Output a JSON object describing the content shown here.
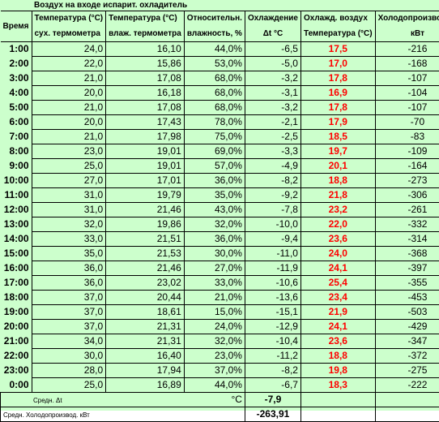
{
  "title": "Воздух на входе испарит. охладитель",
  "headers": {
    "time": "Время",
    "dry_top": "Температура (°C)",
    "dry_bottom": "сух. термометра",
    "wet_top": "Температура (°C)",
    "wet_bottom": "влаж. термометра",
    "rh_top": "Относительн.",
    "rh_bottom": "влажность, %",
    "cool_top": "Охлаждение",
    "cool_bottom": "Δt °C",
    "air_top": "Охлажд. воздух",
    "air_bottom": "Температура (°C)",
    "cap_top": "Холодопроизводит.",
    "cap_bottom": "кВт"
  },
  "rows": [
    {
      "time": "1:00",
      "dry": "24,0",
      "wet": "16,10",
      "rh": "44,0%",
      "dt": "-6,5",
      "air": "17,5",
      "kw": "-216"
    },
    {
      "time": "2:00",
      "dry": "22,0",
      "wet": "15,86",
      "rh": "53,0%",
      "dt": "-5,0",
      "air": "17,0",
      "kw": "-168"
    },
    {
      "time": "3:00",
      "dry": "21,0",
      "wet": "17,08",
      "rh": "68,0%",
      "dt": "-3,2",
      "air": "17,8",
      "kw": "-107"
    },
    {
      "time": "4:00",
      "dry": "20,0",
      "wet": "16,18",
      "rh": "68,0%",
      "dt": "-3,1",
      "air": "16,9",
      "kw": "-104"
    },
    {
      "time": "5:00",
      "dry": "21,0",
      "wet": "17,08",
      "rh": "68,0%",
      "dt": "-3,2",
      "air": "17,8",
      "kw": "-107"
    },
    {
      "time": "6:00",
      "dry": "20,0",
      "wet": "17,43",
      "rh": "78,0%",
      "dt": "-2,1",
      "air": "17,9",
      "kw": "-70"
    },
    {
      "time": "7:00",
      "dry": "21,0",
      "wet": "17,98",
      "rh": "75,0%",
      "dt": "-2,5",
      "air": "18,5",
      "kw": "-83"
    },
    {
      "time": "8:00",
      "dry": "23,0",
      "wet": "19,01",
      "rh": "69,0%",
      "dt": "-3,3",
      "air": "19,7",
      "kw": "-109"
    },
    {
      "time": "9:00",
      "dry": "25,0",
      "wet": "19,01",
      "rh": "57,0%",
      "dt": "-4,9",
      "air": "20,1",
      "kw": "-164"
    },
    {
      "time": "10:00",
      "dry": "27,0",
      "wet": "17,01",
      "rh": "36,0%",
      "dt": "-8,2",
      "air": "18,8",
      "kw": "-273"
    },
    {
      "time": "11:00",
      "dry": "31,0",
      "wet": "19,79",
      "rh": "35,0%",
      "dt": "-9,2",
      "air": "21,8",
      "kw": "-306"
    },
    {
      "time": "12:00",
      "dry": "31,0",
      "wet": "21,46",
      "rh": "43,0%",
      "dt": "-7,8",
      "air": "23,2",
      "kw": "-261"
    },
    {
      "time": "13:00",
      "dry": "32,0",
      "wet": "19,86",
      "rh": "32,0%",
      "dt": "-10,0",
      "air": "22,0",
      "kw": "-332"
    },
    {
      "time": "14:00",
      "dry": "33,0",
      "wet": "21,51",
      "rh": "36,0%",
      "dt": "-9,4",
      "air": "23,6",
      "kw": "-314"
    },
    {
      "time": "15:00",
      "dry": "35,0",
      "wet": "21,53",
      "rh": "30,0%",
      "dt": "-11,0",
      "air": "24,0",
      "kw": "-368"
    },
    {
      "time": "16:00",
      "dry": "36,0",
      "wet": "21,46",
      "rh": "27,0%",
      "dt": "-11,9",
      "air": "24,1",
      "kw": "-397"
    },
    {
      "time": "17:00",
      "dry": "36,0",
      "wet": "23,02",
      "rh": "33,0%",
      "dt": "-10,6",
      "air": "25,4",
      "kw": "-355"
    },
    {
      "time": "18:00",
      "dry": "37,0",
      "wet": "20,44",
      "rh": "21,0%",
      "dt": "-13,6",
      "air": "23,4",
      "kw": "-453"
    },
    {
      "time": "19:00",
      "dry": "37,0",
      "wet": "18,61",
      "rh": "15,0%",
      "dt": "-15,1",
      "air": "21,9",
      "kw": "-503"
    },
    {
      "time": "20:00",
      "dry": "37,0",
      "wet": "21,31",
      "rh": "24,0%",
      "dt": "-12,9",
      "air": "24,1",
      "kw": "-429"
    },
    {
      "time": "21:00",
      "dry": "34,0",
      "wet": "21,31",
      "rh": "32,0%",
      "dt": "-10,4",
      "air": "23,6",
      "kw": "-347"
    },
    {
      "time": "22:00",
      "dry": "30,0",
      "wet": "16,40",
      "rh": "23,0%",
      "dt": "-11,2",
      "air": "18,8",
      "kw": "-372"
    },
    {
      "time": "23:00",
      "dry": "28,0",
      "wet": "17,94",
      "rh": "37,0%",
      "dt": "-8,2",
      "air": "19,8",
      "kw": "-275"
    },
    {
      "time": "0:00",
      "dry": "25,0",
      "wet": "16,89",
      "rh": "44,0%",
      "dt": "-6,7",
      "air": "18,3",
      "kw": "-222"
    }
  ],
  "summary": {
    "avg_dt_label": "Средн. Δt",
    "avg_dt_unit": "°C",
    "avg_dt_value": "-7,9",
    "avg_cap_label": "Средн. Холодопроизвод. кВт",
    "avg_cap_value": "-263,91"
  },
  "colors": {
    "background": "#ccffcc",
    "highlight": "#ff0000"
  }
}
